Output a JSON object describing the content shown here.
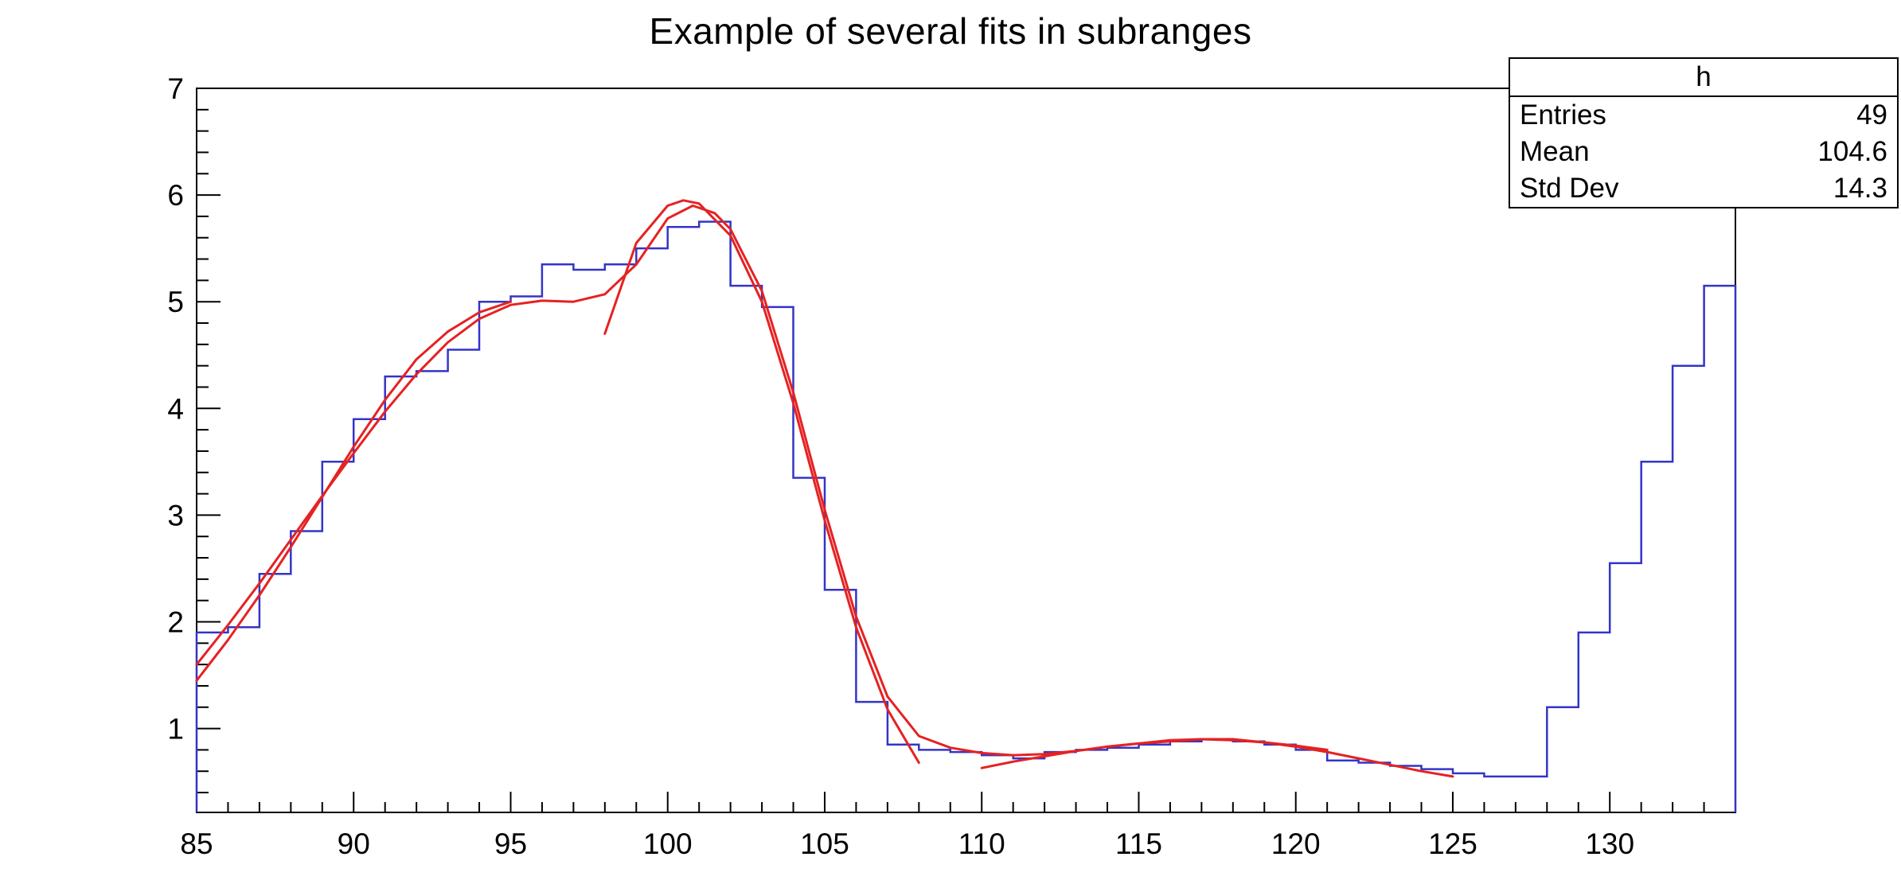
{
  "title": "Example of several fits in subranges",
  "stats_box": {
    "header": "h",
    "rows": [
      {
        "label": "Entries",
        "value": "49"
      },
      {
        "label": "Mean",
        "value": "104.6"
      },
      {
        "label": "Std Dev",
        "value": "14.3"
      }
    ]
  },
  "colors": {
    "background": "#ffffff",
    "frame": "#000000",
    "histogram": "#3434c8",
    "fit": "#e52222"
  },
  "chart_data": {
    "type": "bar",
    "render_style": "root-step-histogram-with-fit-curves",
    "title": "Example of several fits in subranges",
    "xlabel": "",
    "ylabel": "",
    "grid": false,
    "legend": "none",
    "x_min": 85,
    "x_max": 134,
    "y_min": 0.214,
    "y_max": 7,
    "bin_start": 85,
    "bin_width": 1,
    "bin_contents": [
      1.9,
      1.95,
      2.45,
      2.85,
      3.5,
      3.9,
      4.3,
      4.35,
      4.55,
      5.0,
      5.05,
      5.35,
      5.3,
      5.35,
      5.5,
      5.7,
      5.75,
      5.15,
      4.95,
      3.35,
      2.3,
      1.25,
      0.85,
      0.8,
      0.78,
      0.75,
      0.72,
      0.78,
      0.8,
      0.82,
      0.85,
      0.88,
      0.9,
      0.88,
      0.85,
      0.8,
      0.7,
      0.68,
      0.65,
      0.62,
      0.58,
      0.55,
      0.55,
      1.2,
      1.9,
      2.55,
      3.5,
      4.4,
      5.15
    ],
    "x_major_ticks": [
      85,
      90,
      95,
      100,
      105,
      110,
      115,
      120,
      125,
      130
    ],
    "x_minor_tick_step": 1,
    "y_major_ticks": [
      1,
      2,
      3,
      4,
      5,
      6,
      7
    ],
    "y_minor_tick_step": 0.2,
    "fits": [
      {
        "name": "g1-subrange-85-95",
        "points": [
          [
            85,
            1.45
          ],
          [
            86,
            1.83
          ],
          [
            87,
            2.25
          ],
          [
            88,
            2.7
          ],
          [
            89,
            3.17
          ],
          [
            90,
            3.64
          ],
          [
            91,
            4.08
          ],
          [
            92,
            4.46
          ],
          [
            93,
            4.72
          ],
          [
            94,
            4.9
          ],
          [
            95,
            5.0
          ]
        ]
      },
      {
        "name": "g2-subrange-98-108",
        "points": [
          [
            98,
            4.7
          ],
          [
            99,
            5.55
          ],
          [
            100,
            5.9
          ],
          [
            100.5,
            5.95
          ],
          [
            101,
            5.92
          ],
          [
            102,
            5.62
          ],
          [
            103,
            5.0
          ],
          [
            104,
            4.05
          ],
          [
            105,
            2.95
          ],
          [
            106,
            1.95
          ],
          [
            107,
            1.18
          ],
          [
            108,
            0.68
          ]
        ]
      },
      {
        "name": "g3-subrange-110-121",
        "points": [
          [
            110,
            0.63
          ],
          [
            111,
            0.69
          ],
          [
            112,
            0.74
          ],
          [
            113,
            0.79
          ],
          [
            114,
            0.83
          ],
          [
            115,
            0.86
          ],
          [
            116,
            0.88
          ],
          [
            117,
            0.9
          ],
          [
            118,
            0.89
          ],
          [
            119,
            0.87
          ],
          [
            120,
            0.84
          ],
          [
            121,
            0.8
          ]
        ]
      },
      {
        "name": "total-subrange-85-125",
        "points": [
          [
            85,
            1.6
          ],
          [
            86,
            1.97
          ],
          [
            87,
            2.36
          ],
          [
            88,
            2.77
          ],
          [
            89,
            3.18
          ],
          [
            90,
            3.58
          ],
          [
            91,
            3.97
          ],
          [
            92,
            4.32
          ],
          [
            93,
            4.62
          ],
          [
            94,
            4.84
          ],
          [
            95,
            4.97
          ],
          [
            96,
            5.01
          ],
          [
            97,
            5.0
          ],
          [
            98,
            5.07
          ],
          [
            99,
            5.35
          ],
          [
            100,
            5.78
          ],
          [
            100.8,
            5.9
          ],
          [
            101.5,
            5.83
          ],
          [
            102,
            5.68
          ],
          [
            103,
            5.1
          ],
          [
            104,
            4.15
          ],
          [
            105,
            3.05
          ],
          [
            106,
            2.05
          ],
          [
            107,
            1.3
          ],
          [
            108,
            0.93
          ],
          [
            109,
            0.82
          ],
          [
            110,
            0.77
          ],
          [
            111,
            0.75
          ],
          [
            112,
            0.76
          ],
          [
            113,
            0.79
          ],
          [
            114,
            0.83
          ],
          [
            115,
            0.86
          ],
          [
            116,
            0.89
          ],
          [
            117,
            0.9
          ],
          [
            118,
            0.9
          ],
          [
            119,
            0.87
          ],
          [
            120,
            0.83
          ],
          [
            121,
            0.78
          ],
          [
            122,
            0.72
          ],
          [
            123,
            0.66
          ],
          [
            124,
            0.6
          ],
          [
            125,
            0.55
          ]
        ]
      }
    ]
  }
}
